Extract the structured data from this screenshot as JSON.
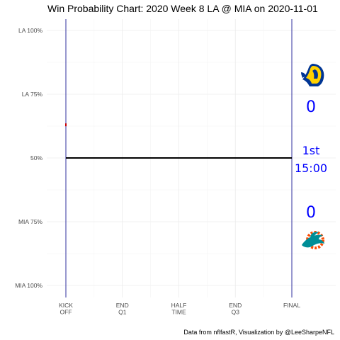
{
  "chart_data": {
    "type": "line",
    "title": "Win Probability Chart: 2020 Week 8 LA @ MIA on 2020-11-01",
    "caption": "Data from nflfastR, Visualization by @LeeSharpeNFL",
    "y_ticks": [
      {
        "value": 1.0,
        "label": "LA 100%"
      },
      {
        "value": 0.75,
        "label": "LA 75%"
      },
      {
        "value": 0.5,
        "label": "50%"
      },
      {
        "value": 0.25,
        "label": "MIA 75%"
      },
      {
        "value": 0.0,
        "label": "MIA 100%"
      }
    ],
    "x_ticks": [
      {
        "value": 3600,
        "label": [
          "KICK",
          "OFF"
        ]
      },
      {
        "value": 2700,
        "label": [
          "END",
          "Q1"
        ]
      },
      {
        "value": 1800,
        "label": [
          "HALF",
          "TIME"
        ]
      },
      {
        "value": 900,
        "label": [
          "END",
          "Q3"
        ]
      },
      {
        "value": 0,
        "label": [
          "FINAL"
        ]
      }
    ],
    "xlim": [
      3600,
      0
    ],
    "ylim": [
      0,
      1
    ],
    "series": [
      {
        "values": [
          {
            "x": 3600,
            "y": 0.5
          },
          {
            "x": 0,
            "y": 0.5
          }
        ],
        "color": "#000000"
      }
    ],
    "marker": {
      "x": 3600,
      "y": 0.63,
      "color": "#cc0000"
    },
    "vlines": [
      {
        "x": 3600,
        "color": "#00008b"
      },
      {
        "x": 0,
        "color": "#00008b"
      }
    ],
    "grid": true,
    "home_team": {
      "abbr": "LA",
      "score": "0",
      "logo": "rams-horn-icon",
      "color": "#ffa300"
    },
    "away_team": {
      "abbr": "MIA",
      "score": "0",
      "logo": "dolphins-icon",
      "color": "#008e97"
    },
    "clock": {
      "quarter": "1st",
      "time": "15:00"
    }
  }
}
